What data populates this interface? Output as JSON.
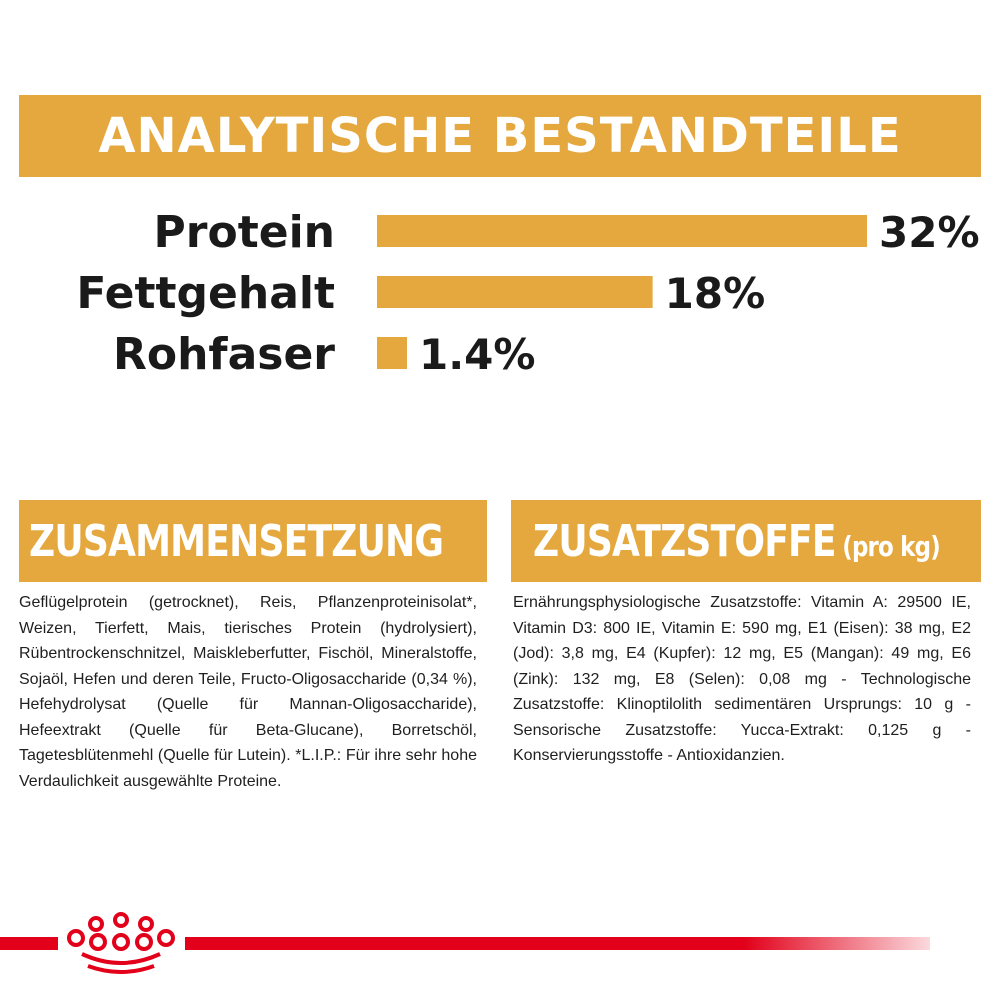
{
  "banner": {
    "title": "ANALYTISCHE BESTANDTEILE"
  },
  "chart_data": {
    "type": "bar",
    "orientation": "horizontal",
    "title": "ANALYTISCHE BESTANDTEILE",
    "categories": [
      "Protein",
      "Fettgehalt",
      "Rohfaser"
    ],
    "values": [
      32,
      18,
      1.4
    ],
    "value_labels": [
      "32%",
      "18%",
      "1.4%"
    ],
    "unit": "%",
    "bar_color": "#E5A83E",
    "grid": false,
    "legend": "none"
  },
  "composition": {
    "title": "ZUSAMMENSETZUNG",
    "text": "Geflügelprotein (getrocknet), Reis, Pflanzenproteinisolat*, Weizen, Tierfett, Mais, tierisches Protein (hydrolysiert), Rübentrockenschnitzel, Maiskleberfutter, Fischöl, Mineralstoffe, Sojaöl, Hefen und deren Teile, Fructo-Oligosaccharide (0,34 %), Hefehydrolysat (Quelle für Mannan-Oligosaccharide), Hefeextrakt (Quelle für Beta-Glucane), Borretschöl, Tagetesblütenmehl (Quelle für Lutein). *L.I.P.: Für ihre sehr hohe Verdaulichkeit ausgewählte Proteine."
  },
  "additives": {
    "title": "ZUSATZSTOFFE",
    "title_suffix": "(pro kg)",
    "text": "Ernährungsphysiologische Zusatzstoffe: Vitamin A: 29500 IE, Vitamin D3: 800 IE, Vitamin E: 590 mg, E1 (Eisen): 38 mg, E2 (Jod): 3,8 mg, E4 (Kupfer): 12 mg, E5 (Mangan): 49 mg, E6 (Zink): 132 mg, E8 (Selen): 0,08 mg - Technologische Zusatzstoffe: Klinoptilolith sedimentären Ursprungs: 10 g - Sensorische Zusatzstoffe: Yucca-Extrakt: 0,125 g - Konservierungsstoffe - Antioxidanzien."
  },
  "brand": {
    "logo_icon": "crown-icon",
    "accent_color": "#E2001A"
  }
}
